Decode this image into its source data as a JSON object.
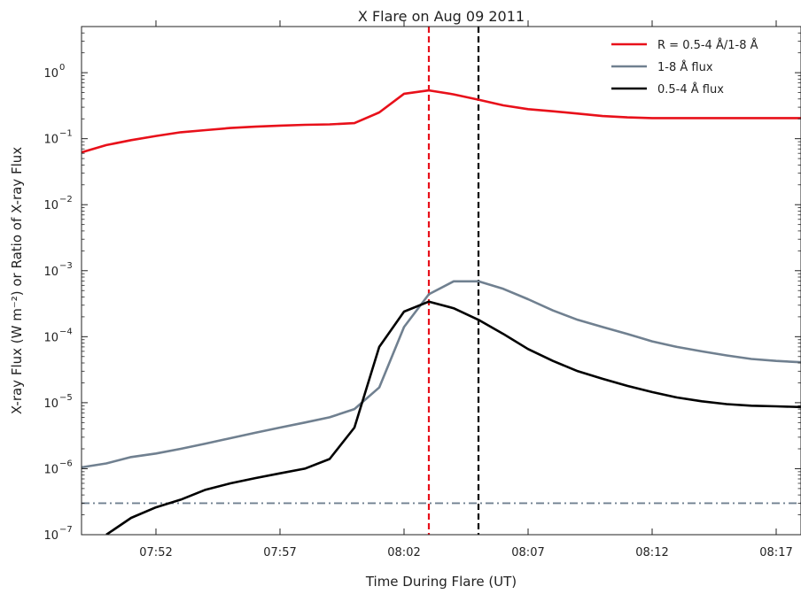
{
  "chart_data": {
    "type": "line",
    "title": "X Flare on Aug 09 2011",
    "xlabel": "Time During Flare (UT)",
    "ylabel": "X-ray Flux (W m⁻²) or Ratio of X-ray Flux",
    "xlim": [
      "07:49",
      "08:18"
    ],
    "ylim": [
      1e-07,
      5
    ],
    "yscale": "log",
    "x_ticks": [
      "07:52",
      "07:57",
      "08:02",
      "08:07",
      "08:12",
      "08:17"
    ],
    "y_ticks": [
      {
        "value": 1e-07,
        "base": "10",
        "exp": "−7"
      },
      {
        "value": 1e-06,
        "base": "10",
        "exp": "−6"
      },
      {
        "value": 1e-05,
        "base": "10",
        "exp": "−5"
      },
      {
        "value": 0.0001,
        "base": "10",
        "exp": "−4"
      },
      {
        "value": 0.001,
        "base": "10",
        "exp": "−3"
      },
      {
        "value": 0.01,
        "base": "10",
        "exp": "−2"
      },
      {
        "value": 0.1,
        "base": "10",
        "exp": "−1"
      },
      {
        "value": 1,
        "base": "10",
        "exp": "0"
      }
    ],
    "grid": false,
    "legend": "top-right",
    "series": [
      {
        "name": "R = 0.5-4 Å/1-8 Å",
        "color": "#e8101a",
        "x": [
          "07:49",
          "07:50",
          "07:51",
          "07:52",
          "07:53",
          "07:54",
          "07:55",
          "07:56",
          "07:57",
          "07:58",
          "07:59",
          "08:00",
          "08:01",
          "08:02",
          "08:03",
          "08:04",
          "08:05",
          "08:06",
          "08:07",
          "08:08",
          "08:09",
          "08:10",
          "08:11",
          "08:12",
          "08:13",
          "08:14",
          "08:15",
          "08:16",
          "08:17",
          "08:18"
        ],
        "y": [
          0.062,
          0.08,
          0.095,
          0.11,
          0.125,
          0.135,
          0.145,
          0.152,
          0.158,
          0.162,
          0.165,
          0.172,
          0.25,
          0.48,
          0.54,
          0.47,
          0.39,
          0.32,
          0.28,
          0.26,
          0.24,
          0.22,
          0.21,
          0.205,
          0.205,
          0.205,
          0.205,
          0.205,
          0.205,
          0.205
        ]
      },
      {
        "name": "1-8 Å flux",
        "color": "#708090",
        "x": [
          "07:49",
          "07:50",
          "07:51",
          "07:52",
          "07:53",
          "07:54",
          "07:55",
          "07:56",
          "07:57",
          "07:58",
          "07:59",
          "08:00",
          "08:01",
          "08:02",
          "08:03",
          "08:04",
          "08:05",
          "08:06",
          "08:07",
          "08:08",
          "08:09",
          "08:10",
          "08:11",
          "08:12",
          "08:13",
          "08:14",
          "08:15",
          "08:16",
          "08:17",
          "08:18"
        ],
        "y": [
          1.05e-06,
          1.2e-06,
          1.5e-06,
          1.7e-06,
          2e-06,
          2.4e-06,
          2.9e-06,
          3.5e-06,
          4.2e-06,
          5e-06,
          6e-06,
          8e-06,
          1.7e-05,
          0.00014,
          0.00044,
          0.00069,
          0.00069,
          0.00053,
          0.00037,
          0.00025,
          0.00018,
          0.00014,
          0.00011,
          8.5e-05,
          7e-05,
          6e-05,
          5.2e-05,
          4.6e-05,
          4.3e-05,
          4.1e-05
        ]
      },
      {
        "name": "0.5-4 Å flux",
        "color": "#000000",
        "x": [
          "07:50",
          "07:51",
          "07:52",
          "07:53",
          "07:54",
          "07:55",
          "07:56",
          "07:57",
          "07:58",
          "07:59",
          "08:00",
          "08:01",
          "08:02",
          "08:03",
          "08:04",
          "08:05",
          "08:06",
          "08:07",
          "08:08",
          "08:09",
          "08:10",
          "08:11",
          "08:12",
          "08:13",
          "08:14",
          "08:15",
          "08:16",
          "08:17",
          "08:18"
        ],
        "y": [
          1e-07,
          1.8e-07,
          2.6e-07,
          3.4e-07,
          4.8e-07,
          6e-07,
          7.2e-07,
          8.5e-07,
          1e-06,
          1.4e-06,
          4.2e-06,
          7e-05,
          0.00024,
          0.00034,
          0.00027,
          0.00018,
          0.00011,
          6.5e-05,
          4.3e-05,
          3e-05,
          2.3e-05,
          1.8e-05,
          1.45e-05,
          1.2e-05,
          1.05e-05,
          9.5e-06,
          9e-06,
          8.8e-06,
          8.6e-06
        ]
      }
    ],
    "reference_lines": [
      {
        "orientation": "vertical",
        "x": "08:03",
        "color": "#e8101a",
        "style": "dashed"
      },
      {
        "orientation": "vertical",
        "x": "08:05",
        "color": "#000000",
        "style": "dashed"
      },
      {
        "orientation": "horizontal",
        "y": 3e-07,
        "color": "#708090",
        "style": "dashdot"
      }
    ]
  }
}
